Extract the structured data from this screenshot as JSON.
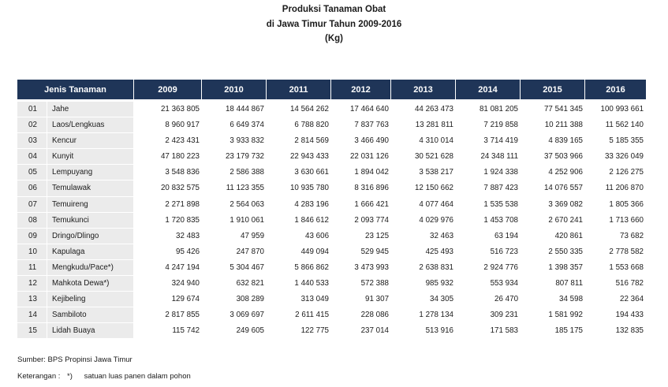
{
  "title": {
    "line1": "Produksi Tanaman Obat",
    "line2": "di Jawa Timur Tahun 2009-2016",
    "line3": "(Kg)"
  },
  "table": {
    "header_jenis": "Jenis Tanaman",
    "years": [
      "2009",
      "2010",
      "2011",
      "2012",
      "2013",
      "2014",
      "2015",
      "2016"
    ],
    "rows": [
      {
        "no": "01",
        "name": "Jahe",
        "values": [
          "21 363 805",
          "18 444 867",
          "14 564 262",
          "17 464 640",
          "44 263 473",
          "81 081 205",
          "77 541 345",
          "100 993 661"
        ]
      },
      {
        "no": "02",
        "name": "Laos/Lengkuas",
        "values": [
          "8 960 917",
          "6 649 374",
          "6 788 820",
          "7 837 763",
          "13 281 811",
          "7 219 858",
          "10 211 388",
          "11 562 140"
        ]
      },
      {
        "no": "03",
        "name": "Kencur",
        "values": [
          "2 423 431",
          "3 933 832",
          "2 814 569",
          "3 466 490",
          "4 310 014",
          "3 714 419",
          "4 839 165",
          "5 185 355"
        ]
      },
      {
        "no": "04",
        "name": "Kunyit",
        "values": [
          "47 180 223",
          "23 179 732",
          "22 943 433",
          "22 031 126",
          "30 521 628",
          "24 348 111",
          "37 503 966",
          "33 326 049"
        ]
      },
      {
        "no": "05",
        "name": "Lempuyang",
        "values": [
          "3 548 836",
          "2 586 388",
          "3 630 661",
          "1 894 042",
          "3 538 217",
          "1 924 338",
          "4 252 906",
          "2 126 275"
        ]
      },
      {
        "no": "06",
        "name": "Temulawak",
        "values": [
          "20 832 575",
          "11 123 355",
          "10 935 780",
          "8 316 896",
          "12 150 662",
          "7 887 423",
          "14 076 557",
          "11 206 870"
        ]
      },
      {
        "no": "07",
        "name": "Temuireng",
        "values": [
          "2 271 898",
          "2 564 063",
          "4 283 196",
          "1 666 421",
          "4 077 464",
          "1 535 538",
          "3 369 082",
          "1 805 366"
        ]
      },
      {
        "no": "08",
        "name": "Temukunci",
        "values": [
          "1 720 835",
          "1 910 061",
          "1 846 612",
          "2 093 774",
          "4 029 976",
          "1 453 708",
          "2 670 241",
          "1 713 660"
        ]
      },
      {
        "no": "09",
        "name": "Dringo/Dlingo",
        "values": [
          "32 483",
          "47 959",
          "43 606",
          "23 125",
          "32 463",
          "63 194",
          "420 861",
          "73 682"
        ]
      },
      {
        "no": "10",
        "name": "Kapulaga",
        "values": [
          "95 426",
          "247 870",
          "449 094",
          "529 945",
          "425 493",
          "516 723",
          "2 550 335",
          "2 778 582"
        ]
      },
      {
        "no": "11",
        "name": "Mengkudu/Pace*)",
        "values": [
          "4 247 194",
          "5 304 467",
          "5 866 862",
          "3 473 993",
          "2 638 831",
          "2 924 776",
          "1 398 357",
          "1 553 668"
        ]
      },
      {
        "no": "12",
        "name": "Mahkota Dewa*)",
        "values": [
          "324 940",
          "632 821",
          "1 440 533",
          "572 388",
          "985 932",
          "553 934",
          "807 811",
          "516 782"
        ]
      },
      {
        "no": "13",
        "name": "Kejibeling",
        "values": [
          "129 674",
          "308 289",
          "313 049",
          "91 307",
          "34 305",
          "26 470",
          "34 598",
          "22 364"
        ]
      },
      {
        "no": "14",
        "name": "Sambiloto",
        "values": [
          "2 817 855",
          "3 069 697",
          "2 611 415",
          "228 086",
          "1 278 134",
          "309 231",
          "1 581 992",
          "194 433"
        ]
      },
      {
        "no": "15",
        "name": "Lidah Buaya",
        "values": [
          "115 742",
          "249 605",
          "122 775",
          "237 014",
          "513 916",
          "171 583",
          "185 175",
          "132 835"
        ]
      }
    ]
  },
  "footnotes": {
    "source": "Sumber: BPS Propinsi Jawa Timur",
    "note_label": "Keterangan :",
    "note_marker": "*)",
    "note_text": "satuan luas panen dalam pohon"
  }
}
